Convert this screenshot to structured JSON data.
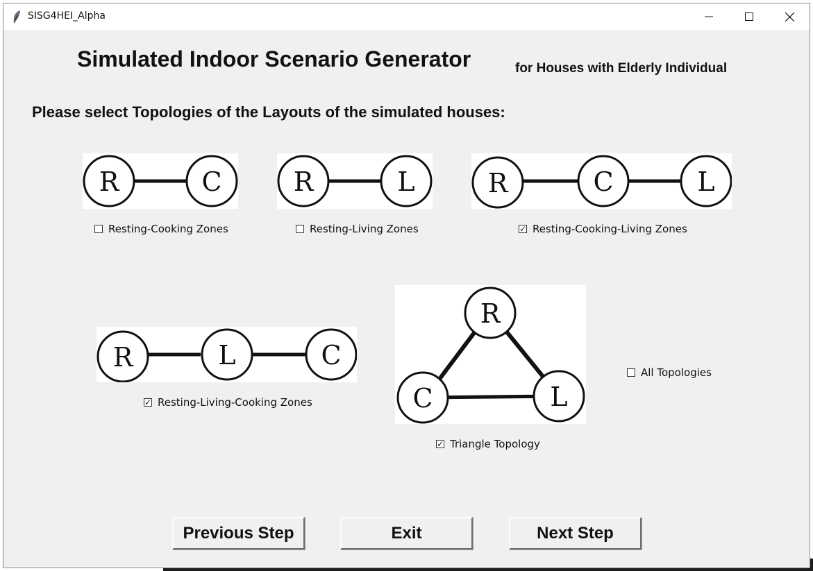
{
  "window": {
    "title": "SISG4HEI_Alpha",
    "controls": {
      "minimize": "—",
      "maximize": "☐",
      "close": "✕"
    }
  },
  "header": {
    "title": "Simulated Indoor Scenario Generator",
    "subtitle": "for Houses with Elderly Individual"
  },
  "prompt": "Please select Topologies of the Layouts of the simulated houses:",
  "topologies": [
    {
      "id": "rc",
      "label": "Resting-Cooking Zones",
      "checked": false,
      "nodes": [
        "R",
        "C"
      ]
    },
    {
      "id": "rl",
      "label": "Resting-Living Zones",
      "checked": false,
      "nodes": [
        "R",
        "L"
      ]
    },
    {
      "id": "rcl",
      "label": "Resting-Cooking-Living Zones",
      "checked": true,
      "nodes": [
        "R",
        "C",
        "L"
      ]
    },
    {
      "id": "rlc",
      "label": "Resting-Living-Cooking Zones",
      "checked": true,
      "nodes": [
        "R",
        "L",
        "C"
      ]
    },
    {
      "id": "tri",
      "label": "Triangle Topology",
      "checked": true,
      "nodes": [
        "R",
        "C",
        "L"
      ]
    },
    {
      "id": "all",
      "label": "All Topologies",
      "checked": false
    }
  ],
  "buttons": {
    "previous": "Previous Step",
    "exit": "Exit",
    "next": "Next Step"
  },
  "colors": {
    "window_bg": "#f0f0f0",
    "titlebar_bg": "#ffffff",
    "diagram_bg": "#ffffff",
    "stroke": "#111111"
  }
}
